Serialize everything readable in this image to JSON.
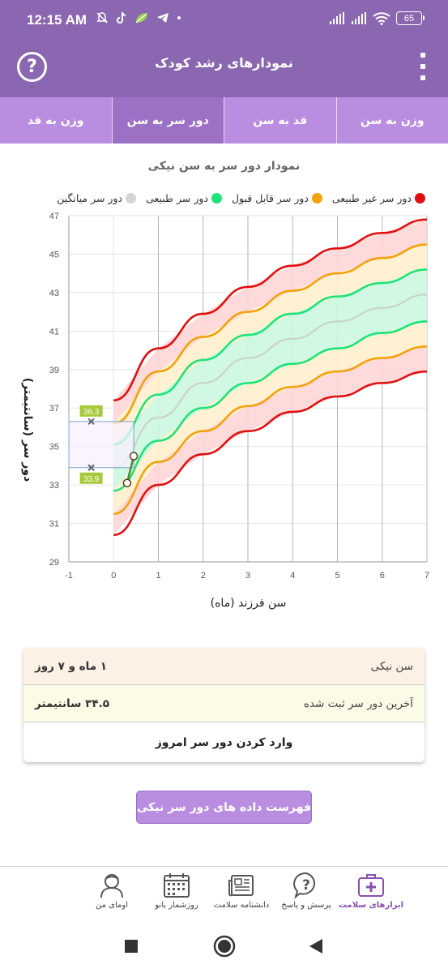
{
  "status_bar": {
    "time": "12:15 AM",
    "battery": "65"
  },
  "app_bar": {
    "title": "نمودارهای رشد کودک",
    "help_icon": "question-circle-icon",
    "menu_icon": "more-vertical-icon"
  },
  "tabs": [
    {
      "label": "وزن به سن",
      "active": false
    },
    {
      "label": "قد به سن",
      "active": false
    },
    {
      "label": "دور سر به سن",
      "active": true
    },
    {
      "label": "وزن به قد",
      "active": false
    }
  ],
  "chart_title": "نمودار دور سر به سن نیکی",
  "legend": [
    {
      "label": "دور سر غیر طبیعی",
      "color": "#e01010"
    },
    {
      "label": "دور سر قابل قبول",
      "color": "#f2a20c"
    },
    {
      "label": "دور سر طبیعی",
      "color": "#1ee37a"
    },
    {
      "label": "دور سر میانگین",
      "color": "#d4d4d4"
    }
  ],
  "chart_data": {
    "type": "line",
    "title": "نمودار دور سر به سن نیکی",
    "xlabel": "سن فرزند (ماه)",
    "ylabel": "دور سر (سانتیمتر)",
    "xlim": [
      -1,
      7
    ],
    "ylim": [
      29,
      47
    ],
    "x_ticks": [
      "-1",
      "0",
      "1",
      "2",
      "3",
      "4",
      "5",
      "6",
      "7"
    ],
    "y_ticks": [
      "29",
      "31",
      "33",
      "35",
      "37",
      "39",
      "41",
      "43",
      "45",
      "47"
    ],
    "x": [
      0,
      1,
      2,
      3,
      4,
      5,
      6,
      7
    ],
    "series": [
      {
        "name": "دور سر غیر طبیعی",
        "color": "#e01010",
        "values": [
          37.4,
          40.1,
          41.9,
          43.3,
          44.4,
          45.3,
          46.1,
          46.8
        ]
      },
      {
        "name": "دور سر قابل قبول",
        "color": "#f2a20c",
        "values": [
          36.2,
          38.9,
          40.7,
          42.0,
          43.1,
          44.0,
          44.8,
          45.5
        ]
      },
      {
        "name": "دور سر طبیعی",
        "color": "#1ee37a",
        "values": [
          35.1,
          37.7,
          39.5,
          40.8,
          41.9,
          42.8,
          43.5,
          44.2
        ]
      },
      {
        "name": "دور سر میانگین",
        "color": "#c8d4cc",
        "values": [
          33.9,
          36.5,
          38.3,
          39.6,
          40.6,
          41.5,
          42.2,
          42.9
        ]
      },
      {
        "name": "دور سر طبیعی",
        "color": "#1ee37a",
        "values": [
          32.7,
          35.3,
          37.0,
          38.3,
          39.3,
          40.1,
          40.9,
          41.5
        ]
      },
      {
        "name": "دور سر قابل قبول",
        "color": "#f2a20c",
        "values": [
          31.5,
          34.2,
          35.8,
          37.1,
          38.1,
          38.9,
          39.6,
          40.2
        ]
      },
      {
        "name": "دور سر غیر طبیعی",
        "color": "#e01010",
        "values": [
          30.4,
          33.0,
          34.6,
          35.8,
          36.8,
          37.6,
          38.3,
          38.9
        ]
      }
    ],
    "measurements": [
      {
        "x": 0.3,
        "y": 33.1
      },
      {
        "x": 0.45,
        "y": 34.5
      }
    ],
    "zoom_box": {
      "x": [
        -1,
        0.45
      ],
      "y": [
        33.9,
        36.3
      ],
      "labels": [
        "36.3",
        "33.9"
      ]
    },
    "grid": true
  },
  "info": {
    "age_label": "سن نیکی",
    "age_value": "۱ ماه و ۷ روز",
    "last_label": "آخرین دور سر ثبت شده",
    "last_value": "۳۴.۵ سانتیمتر",
    "enter_label": "وارد کردن دور سر امروز"
  },
  "list_button": "فهرست داده های دور سر نیکی",
  "bottom_nav": [
    {
      "label": "ابزارهای سلامت",
      "icon": "medical-kit-icon",
      "active": true
    },
    {
      "label": "پرسش و پاسخ",
      "icon": "question-bubble-icon",
      "active": false
    },
    {
      "label": "دانشنامه سلامت",
      "icon": "newspaper-icon",
      "active": false
    },
    {
      "label": "روزشمار بانو",
      "icon": "calendar-icon",
      "active": false
    },
    {
      "label": "اومای من",
      "icon": "user-profile-icon",
      "active": false
    }
  ]
}
